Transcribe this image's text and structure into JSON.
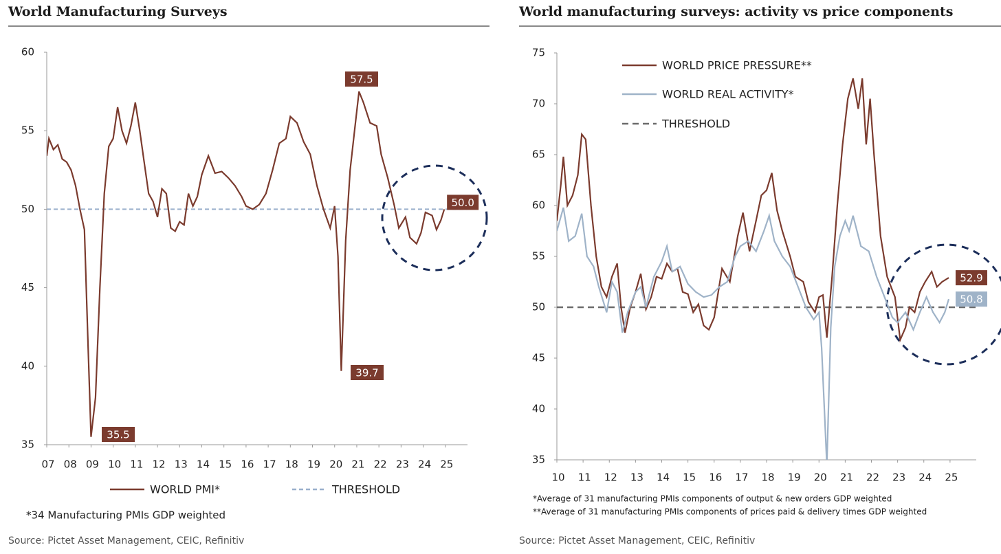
{
  "chart_data": [
    {
      "type": "line",
      "title": "World Manufacturing Surveys",
      "source": "Source: Pictet Asset Management, CEIC, Refinitiv",
      "footnotes": [
        "*34 Manufacturing PMIs GDP weighted"
      ],
      "xlim": [
        2007,
        2026
      ],
      "xticks": [
        {
          "value": 2007,
          "label": "07"
        },
        {
          "value": 2008,
          "label": "08"
        },
        {
          "value": 2009,
          "label": "09"
        },
        {
          "value": 2010,
          "label": "10"
        },
        {
          "value": 2011,
          "label": "11"
        },
        {
          "value": 2012,
          "label": "12"
        },
        {
          "value": 2013,
          "label": "13"
        },
        {
          "value": 2014,
          "label": "14"
        },
        {
          "value": 2015,
          "label": "15"
        },
        {
          "value": 2016,
          "label": "16"
        },
        {
          "value": 2017,
          "label": "17"
        },
        {
          "value": 2018,
          "label": "18"
        },
        {
          "value": 2019,
          "label": "19"
        },
        {
          "value": 2020,
          "label": "20"
        },
        {
          "value": 2021,
          "label": "21"
        },
        {
          "value": 2022,
          "label": "22"
        },
        {
          "value": 2023,
          "label": "23"
        },
        {
          "value": 2024,
          "label": "24"
        },
        {
          "value": 2025,
          "label": "25"
        }
      ],
      "ylim": [
        35,
        60
      ],
      "yticks": [
        35,
        40,
        45,
        50,
        55,
        60
      ],
      "threshold": {
        "name": "THRESHOLD",
        "value": 50,
        "color": "#9ab0cc"
      },
      "annotations": [
        "57.5",
        "39.7",
        "35.5"
      ],
      "series": [
        {
          "name": "WORLD PMI*",
          "color": "#7b3b2e",
          "end_label": "50.0",
          "x": [
            2007.0,
            2007.1,
            2007.3,
            2007.5,
            2007.7,
            2007.9,
            2008.1,
            2008.3,
            2008.5,
            2008.7,
            2008.85,
            2009.0,
            2009.2,
            2009.4,
            2009.6,
            2009.8,
            2010.0,
            2010.2,
            2010.4,
            2010.6,
            2010.8,
            2011.0,
            2011.2,
            2011.4,
            2011.6,
            2011.8,
            2012.0,
            2012.2,
            2012.4,
            2012.6,
            2012.8,
            2013.0,
            2013.2,
            2013.4,
            2013.6,
            2013.8,
            2014.0,
            2014.3,
            2014.6,
            2014.9,
            2015.2,
            2015.5,
            2015.8,
            2016.0,
            2016.3,
            2016.6,
            2016.9,
            2017.2,
            2017.5,
            2017.8,
            2018.0,
            2018.3,
            2018.6,
            2018.9,
            2019.2,
            2019.5,
            2019.8,
            2020.0,
            2020.15,
            2020.3,
            2020.5,
            2020.7,
            2020.9,
            2021.1,
            2021.3,
            2021.6,
            2021.9,
            2022.1,
            2022.4,
            2022.7,
            2022.9,
            2023.2,
            2023.4,
            2023.7,
            2023.9,
            2024.1,
            2024.4,
            2024.6,
            2024.8,
            2024.95
          ],
          "values": [
            53.4,
            54.5,
            53.8,
            54.1,
            53.2,
            53.0,
            52.5,
            51.5,
            50.0,
            48.7,
            42,
            35.5,
            38,
            45,
            51,
            54,
            54.5,
            56.5,
            55,
            54.2,
            55.3,
            56.8,
            55,
            53,
            51,
            50.5,
            49.5,
            51.3,
            51,
            48.8,
            48.6,
            49.2,
            49,
            51,
            50.2,
            50.8,
            52.2,
            53.4,
            52.3,
            52.4,
            52.0,
            51.5,
            50.8,
            50.2,
            50.0,
            50.3,
            51,
            52.5,
            54.2,
            54.5,
            55.9,
            55.5,
            54.3,
            53.5,
            51.5,
            50.0,
            48.8,
            50.2,
            47,
            39.7,
            48,
            52.5,
            55,
            57.5,
            56.8,
            55.5,
            55.3,
            53.5,
            52,
            50.2,
            48.8,
            49.5,
            48.2,
            47.8,
            48.5,
            49.8,
            49.6,
            48.7,
            49.3,
            50.0
          ]
        }
      ]
    },
    {
      "type": "line",
      "title": "World manufacturing surveys: activity vs price components",
      "source": "Source: Pictet Asset Management, CEIC, Refinitiv",
      "footnotes": [
        "*Average of 31 manufacturing PMIs components of output & new orders GDP weighted",
        "**Average of 31 manufacturing PMIs components of prices paid & delivery times GDP weighted"
      ],
      "xlim": [
        2010,
        2026
      ],
      "xticks": [
        {
          "value": 2010,
          "label": "10"
        },
        {
          "value": 2011,
          "label": "11"
        },
        {
          "value": 2012,
          "label": "12"
        },
        {
          "value": 2013,
          "label": "13"
        },
        {
          "value": 2014,
          "label": "14"
        },
        {
          "value": 2015,
          "label": "15"
        },
        {
          "value": 2016,
          "label": "16"
        },
        {
          "value": 2017,
          "label": "17"
        },
        {
          "value": 2018,
          "label": "18"
        },
        {
          "value": 2019,
          "label": "19"
        },
        {
          "value": 2020,
          "label": "20"
        },
        {
          "value": 2021,
          "label": "21"
        },
        {
          "value": 2022,
          "label": "22"
        },
        {
          "value": 2023,
          "label": "23"
        },
        {
          "value": 2024,
          "label": "24"
        },
        {
          "value": 2025,
          "label": "25"
        }
      ],
      "ylim": [
        35,
        75
      ],
      "yticks": [
        35,
        40,
        45,
        50,
        55,
        60,
        65,
        70,
        75
      ],
      "threshold": {
        "name": "THRESHOLD",
        "value": 50,
        "color": "#6b6b6b"
      },
      "series": [
        {
          "name": "WORLD PRICE PRESSURE**",
          "color": "#7b3b2e",
          "end_label": "52.9",
          "x": [
            2010.0,
            2010.15,
            2010.25,
            2010.4,
            2010.6,
            2010.8,
            2010.95,
            2011.1,
            2011.3,
            2011.5,
            2011.7,
            2011.9,
            2012.1,
            2012.3,
            2012.45,
            2012.6,
            2012.8,
            2013.0,
            2013.2,
            2013.4,
            2013.6,
            2013.8,
            2014.0,
            2014.2,
            2014.4,
            2014.6,
            2014.8,
            2015.0,
            2015.2,
            2015.4,
            2015.6,
            2015.8,
            2016.0,
            2016.3,
            2016.6,
            2016.9,
            2017.1,
            2017.35,
            2017.6,
            2017.8,
            2018.0,
            2018.2,
            2018.4,
            2018.6,
            2018.9,
            2019.1,
            2019.4,
            2019.6,
            2019.85,
            2020.0,
            2020.15,
            2020.3,
            2020.5,
            2020.7,
            2020.9,
            2021.1,
            2021.3,
            2021.5,
            2021.65,
            2021.8,
            2021.95,
            2022.1,
            2022.35,
            2022.6,
            2022.9,
            2023.1,
            2023.3,
            2023.45,
            2023.65,
            2023.85,
            2024.05,
            2024.3,
            2024.5,
            2024.7,
            2024.95
          ],
          "values": [
            58.5,
            62,
            64.8,
            60,
            61,
            63,
            67,
            66.5,
            60,
            55,
            52,
            51,
            53,
            54.3,
            50,
            47.5,
            50,
            51.5,
            53.3,
            49.8,
            51,
            53,
            52.8,
            54.3,
            53.5,
            53.8,
            51.5,
            51.3,
            49.5,
            50.3,
            48.2,
            47.8,
            49,
            53.8,
            52.5,
            57,
            59.3,
            55.5,
            58.5,
            61,
            61.5,
            63.2,
            59.5,
            57.5,
            55,
            53,
            52.5,
            50.5,
            49.5,
            51,
            51.2,
            47,
            53,
            60,
            66,
            70.5,
            72.5,
            69.5,
            72.5,
            66,
            70.5,
            65,
            57,
            53,
            51,
            46.8,
            48,
            50,
            49.5,
            51.5,
            52.5,
            53.5,
            52,
            52.5,
            52.9
          ]
        },
        {
          "name": "WORLD REAL ACTIVITY*",
          "color": "#9fb3c8",
          "end_label": "50.8",
          "x": [
            2010.0,
            2010.25,
            2010.45,
            2010.7,
            2010.95,
            2011.15,
            2011.4,
            2011.6,
            2011.9,
            2012.1,
            2012.3,
            2012.5,
            2012.7,
            2013.0,
            2013.2,
            2013.4,
            2013.7,
            2014.0,
            2014.2,
            2014.4,
            2014.7,
            2015.0,
            2015.3,
            2015.6,
            2015.9,
            2016.2,
            2016.5,
            2016.8,
            2017.0,
            2017.3,
            2017.6,
            2017.9,
            2018.1,
            2018.3,
            2018.6,
            2018.9,
            2019.2,
            2019.5,
            2019.8,
            2020.0,
            2020.1,
            2020.3,
            2020.45,
            2020.6,
            2020.8,
            2021.0,
            2021.15,
            2021.3,
            2021.6,
            2021.9,
            2022.2,
            2022.5,
            2022.8,
            2023.0,
            2023.3,
            2023.6,
            2023.85,
            2024.1,
            2024.35,
            2024.6,
            2024.8,
            2024.95
          ],
          "values": [
            57.5,
            59.8,
            56.5,
            57,
            59.2,
            55,
            54,
            52,
            49.5,
            52.5,
            51.5,
            47.5,
            49.5,
            51.5,
            52,
            50,
            53,
            54.5,
            56,
            53.5,
            54,
            52.3,
            51.5,
            51,
            51.2,
            52,
            52.5,
            55,
            56,
            56.5,
            55.5,
            57.5,
            59,
            56.5,
            55,
            54,
            52,
            50,
            48.8,
            49.5,
            46,
            34.5,
            48,
            54,
            57,
            58.5,
            57.5,
            59,
            56,
            55.5,
            53,
            51,
            49,
            48.5,
            49.5,
            47.8,
            49.5,
            51,
            49.5,
            48.5,
            49.5,
            50.8
          ]
        }
      ]
    }
  ]
}
